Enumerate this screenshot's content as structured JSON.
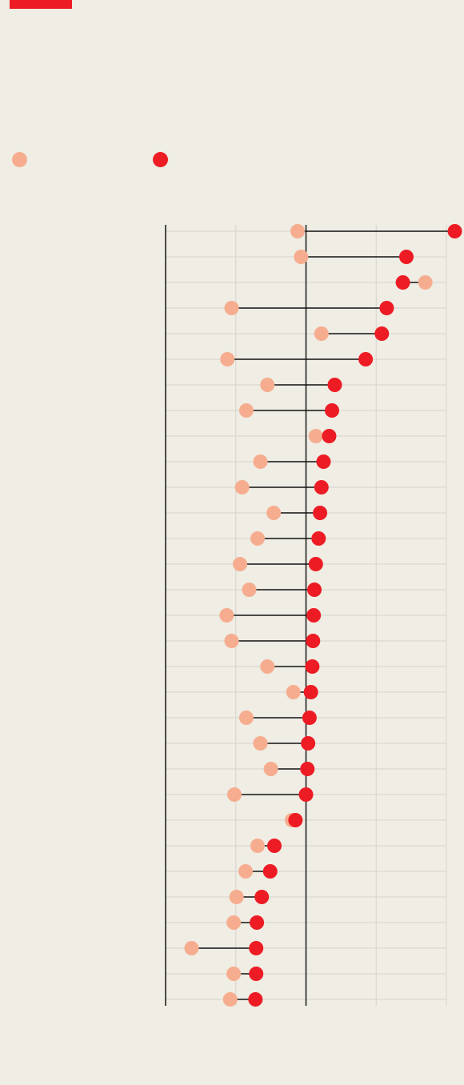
{
  "colors": {
    "background": "#efede4",
    "accent": "#ed1c24",
    "start_marker": "#f6ad8f",
    "end_marker": "#ed1c24",
    "grid": "#d6d4cc",
    "axis_line": "#222222",
    "connector": "#111111"
  },
  "legend": {
    "entries": [
      {
        "marker_color": "#f6ad8f"
      },
      {
        "marker_color": "#ed1c24"
      }
    ]
  },
  "chart_data": {
    "type": "dot-plot",
    "orientation": "horizontal",
    "xlim": [
      -200,
      200
    ],
    "x_gridlines": [
      -200,
      -100,
      0,
      100,
      200
    ],
    "reference_line": 0,
    "grid": true,
    "rows": [
      {
        "start": -12,
        "end": 212
      },
      {
        "start": -7,
        "end": 143
      },
      {
        "start": 170,
        "end": 138
      },
      {
        "start": -106,
        "end": 115
      },
      {
        "start": 22,
        "end": 108
      },
      {
        "start": -112,
        "end": 85
      },
      {
        "start": -55,
        "end": 41
      },
      {
        "start": -85,
        "end": 37
      },
      {
        "start": 14,
        "end": 33
      },
      {
        "start": -65,
        "end": 25
      },
      {
        "start": -91,
        "end": 22
      },
      {
        "start": -46,
        "end": 20
      },
      {
        "start": -69,
        "end": 18
      },
      {
        "start": -94,
        "end": 14
      },
      {
        "start": -81,
        "end": 12
      },
      {
        "start": -113,
        "end": 11
      },
      {
        "start": -106,
        "end": 10
      },
      {
        "start": -55,
        "end": 9
      },
      {
        "start": -18,
        "end": 7
      },
      {
        "start": -85,
        "end": 5
      },
      {
        "start": -65,
        "end": 3
      },
      {
        "start": -50,
        "end": 2
      },
      {
        "start": -102,
        "end": 0
      },
      {
        "start": -20,
        "end": -15
      },
      {
        "start": -69,
        "end": -45
      },
      {
        "start": -86,
        "end": -51
      },
      {
        "start": -99,
        "end": -63
      },
      {
        "start": -103,
        "end": -70
      },
      {
        "start": -163,
        "end": -71
      },
      {
        "start": -103,
        "end": -71
      },
      {
        "start": -108,
        "end": -72
      }
    ]
  }
}
